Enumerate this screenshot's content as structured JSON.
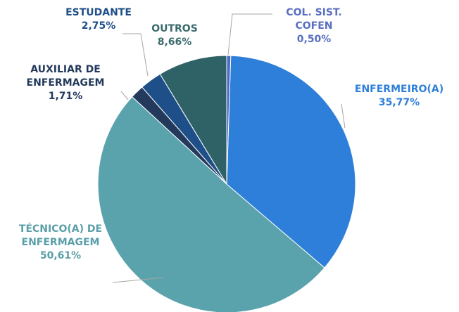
{
  "chart_data": {
    "type": "pie",
    "categories": [
      "COL. SIST. COFEN",
      "ENFERMEIRO(A)",
      "TÉCNICO(A) DE ENFERMAGEM",
      "AUXILIAR DE ENFERMAGEM",
      "ESTUDANTE",
      "OUTROS"
    ],
    "values": [
      0.5,
      35.77,
      50.61,
      1.71,
      2.75,
      8.66
    ],
    "value_labels": [
      "0,50%",
      "35,77%",
      "50,61%",
      "1,71%",
      "2,75%",
      "8,66%"
    ],
    "colors": [
      "#4a6cc4",
      "#2e7fd9",
      "#5aa3ad",
      "#243a5c",
      "#1f4f88",
      "#2f6267"
    ]
  }
}
